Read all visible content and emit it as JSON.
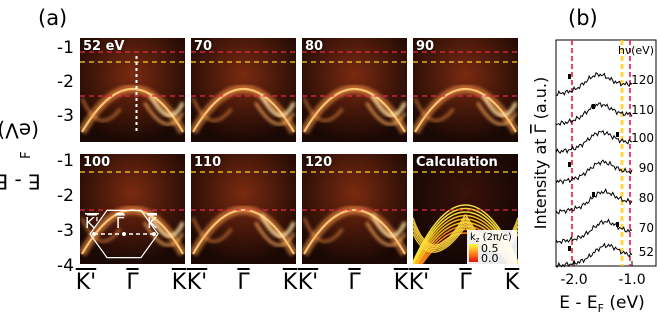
{
  "figure": {
    "panel_a_label": "(a)",
    "panel_b_label": "(b)",
    "y_axis_label": "E - E",
    "y_axis_label_sub": "F",
    "y_axis_label_unit": " (eV)",
    "y_ticks_top": [
      "-1",
      "-2",
      "-3"
    ],
    "y_ticks_bottom": [
      "-1",
      "-2",
      "-3",
      "-4"
    ],
    "top_row_energies": [
      "52 eV",
      "70",
      "80",
      "90"
    ],
    "bottom_row_energies": [
      "100",
      "110",
      "120",
      "Calculation"
    ],
    "high_symmetry_labels": [
      "K'",
      "Γ",
      "K"
    ],
    "bz_labels": [
      "K'",
      "Γ",
      "K"
    ],
    "colorbar": {
      "title": "k",
      "title_sub": "z",
      "title_unit": " (2π/c)",
      "max_label": "0.5",
      "min_label": "0.0"
    },
    "colors": {
      "red_dash": "#e8294a",
      "yellow_dash": "#ffd21f",
      "spectrum_dark": "#1a0a05",
      "spectrum_bright": "#ff8c3a"
    }
  },
  "panel_b": {
    "ylabel_prefix": "Intensity at ",
    "ylabel_gamma": "Γ",
    "ylabel_suffix": " (a.u.)",
    "xlabel": "E - E",
    "xlabel_sub": "F",
    "xlabel_unit": " (eV)",
    "x_ticks": [
      "-2.0",
      "-1.0"
    ],
    "hv_header": "hν(eV)",
    "hv_values": [
      "120",
      "110",
      "100",
      "90",
      "80",
      "70",
      "52"
    ]
  }
}
